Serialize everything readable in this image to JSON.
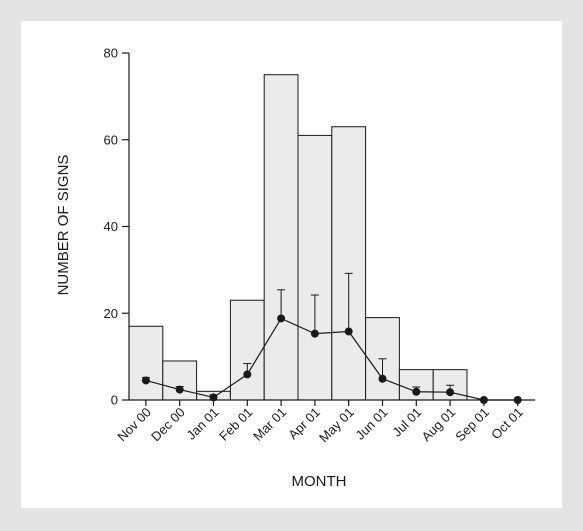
{
  "chart_data": {
    "type": "bar",
    "xlabel": "MONTH",
    "ylabel": "NUMBER OF SIGNS",
    "ylim": [
      0,
      80
    ],
    "yticks": [
      0,
      20,
      40,
      60,
      80
    ],
    "grid": false,
    "legend": "none",
    "categories": [
      "Nov 00",
      "Dec 00",
      "Jan 01",
      "Feb 01",
      "Mar 01",
      "Apr 01",
      "May 01",
      "Jun 01",
      "Jul 01",
      "Aug 01",
      "Sep 01",
      "Oct 01"
    ],
    "series": [
      {
        "type": "bar",
        "values": [
          17,
          9,
          2,
          23,
          75,
          61,
          63,
          19,
          7,
          7,
          0,
          0
        ]
      },
      {
        "type": "line",
        "values": [
          4.5,
          2.4,
          0.6,
          5.9,
          18.8,
          15.3,
          15.8,
          4.9,
          1.9,
          1.8,
          0,
          0
        ],
        "error_upper": [
          5.2,
          3.1,
          1.2,
          8.4,
          25.4,
          24.2,
          29.2,
          9.5,
          3.0,
          3.4,
          0,
          0
        ]
      }
    ],
    "colors": {
      "bar_fill": "#ebebeb",
      "bar_stroke": "#1a1a1a",
      "line": "#1a1a1a",
      "background": "#e4e4e5"
    }
  }
}
